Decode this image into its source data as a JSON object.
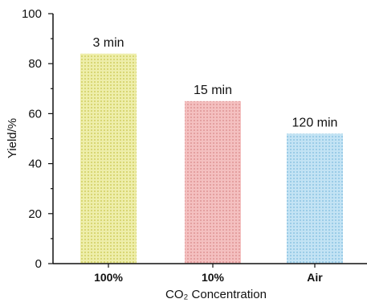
{
  "chart_data": {
    "type": "bar",
    "title": "",
    "categories": [
      "100%",
      "10%",
      "Air"
    ],
    "values": [
      84,
      65,
      52
    ],
    "data_labels": [
      "3 min",
      "15 min",
      "120 min"
    ],
    "colors": [
      "#e6e68a",
      "#f0a9a9",
      "#a8d6ee"
    ],
    "xlabel": "CO₂ Concentration",
    "ylabel": "Yield/%",
    "ylim": [
      0,
      100
    ],
    "yticks": [
      0,
      20,
      40,
      60,
      80,
      100
    ],
    "grid": false,
    "legend": "none"
  }
}
